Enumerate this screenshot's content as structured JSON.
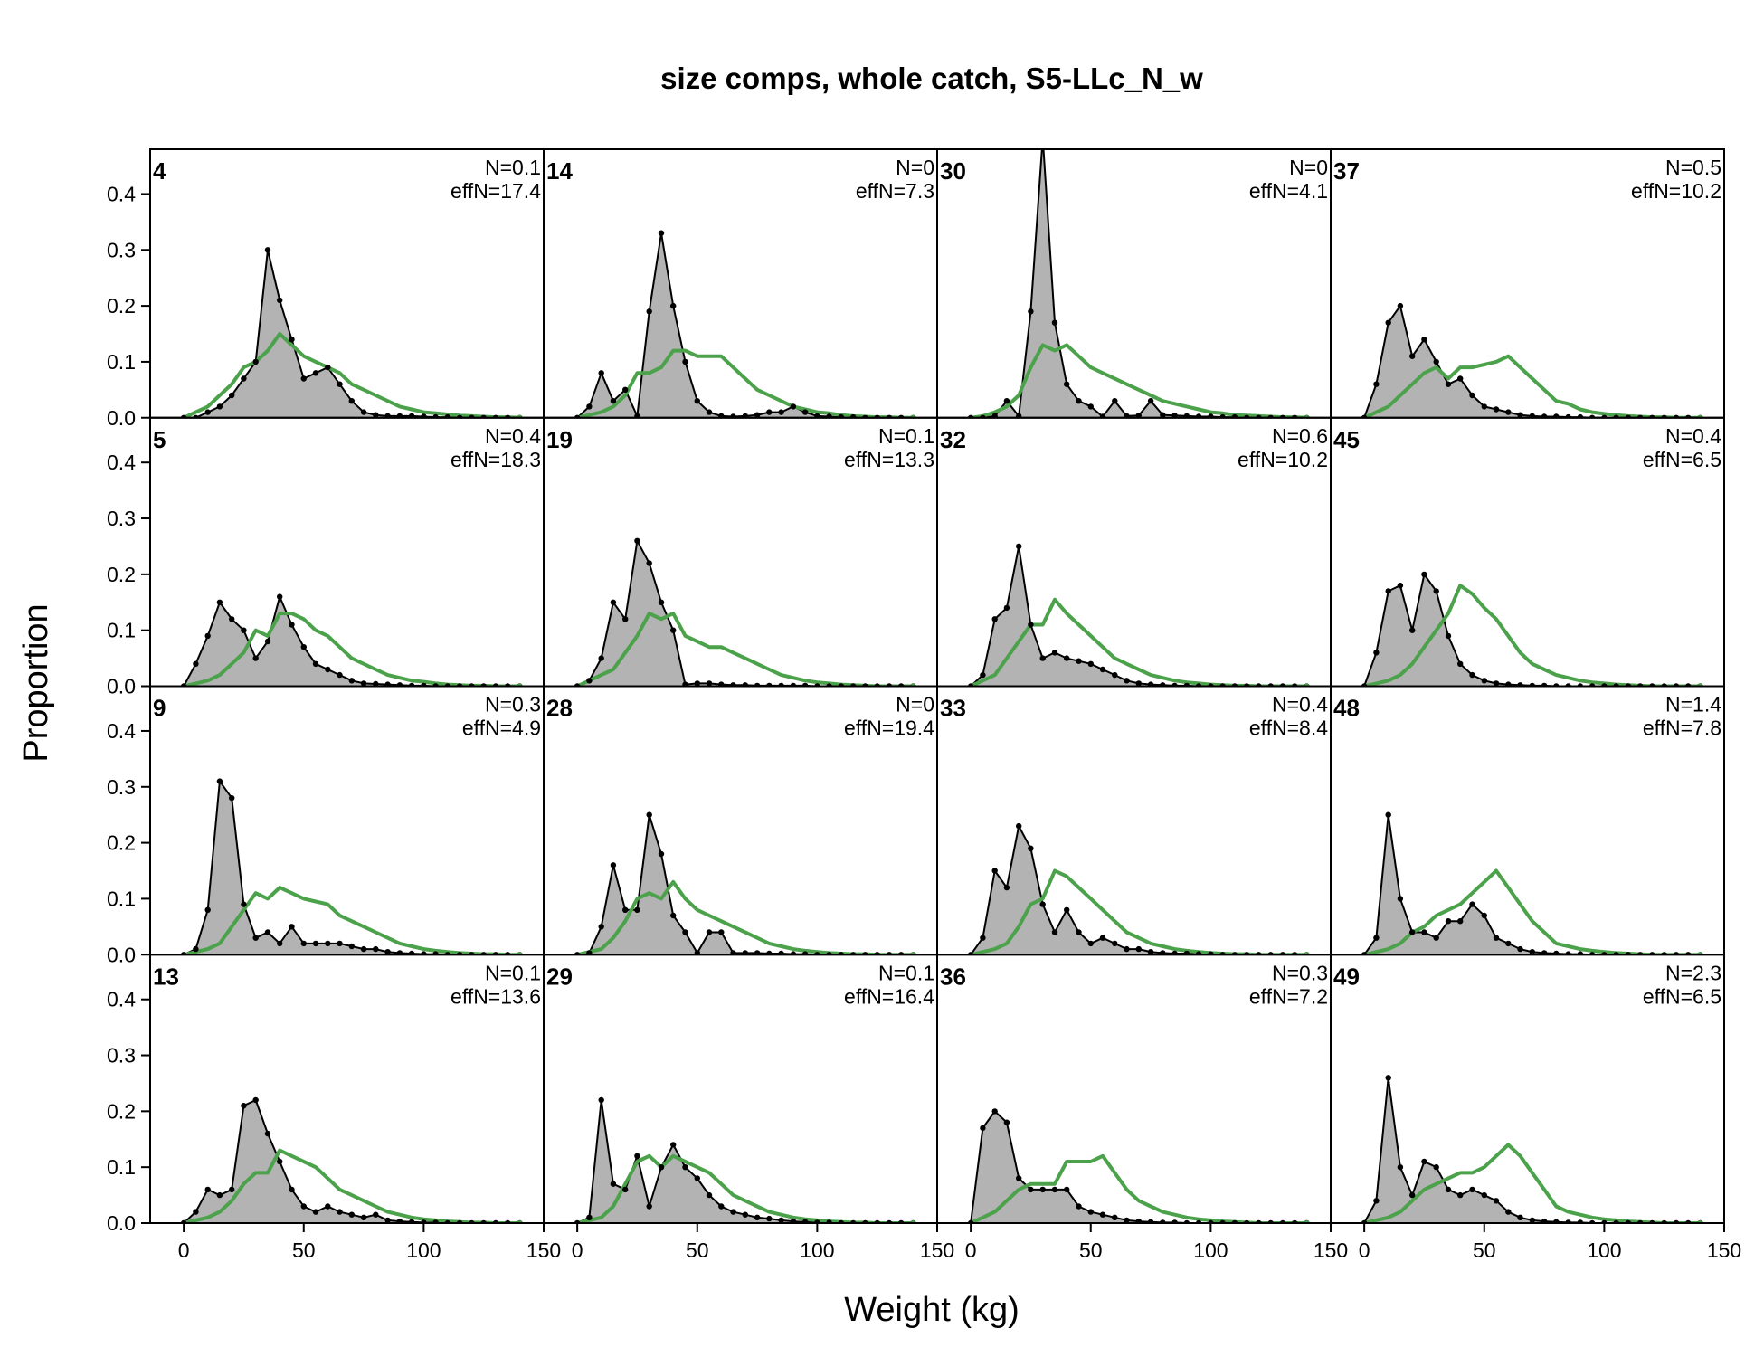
{
  "chart_data": {
    "type": "area",
    "title": "size comps, whole catch, S5-LLc_N_w",
    "xlabel": "Weight (kg)",
    "ylabel": "Proportion",
    "xlim": [
      -14,
      150
    ],
    "ylim": [
      0,
      0.48
    ],
    "xticks": [
      0,
      50,
      100,
      150
    ],
    "yticks": [
      0.0,
      0.1,
      0.2,
      0.3,
      0.4
    ],
    "x": [
      0,
      5,
      10,
      15,
      20,
      25,
      30,
      35,
      40,
      45,
      50,
      55,
      60,
      65,
      70,
      75,
      80,
      85,
      90,
      95,
      100,
      105,
      110,
      115,
      120,
      125,
      130,
      135,
      140
    ],
    "series_styles": {
      "observed": {
        "fill": "#b3b3b3",
        "line": "#000000"
      },
      "expected": {
        "line": "#4ba24b"
      }
    },
    "panels": [
      {
        "label": "4",
        "N": "N=0.1",
        "effN": "effN=17.4",
        "observed": [
          0,
          0,
          0.01,
          0.02,
          0.04,
          0.07,
          0.1,
          0.3,
          0.21,
          0.14,
          0.07,
          0.08,
          0.09,
          0.06,
          0.03,
          0.01,
          0.005,
          0.003,
          0.003,
          0.003,
          0.002,
          0.001,
          0.001,
          0,
          0,
          0,
          0,
          0,
          0
        ],
        "expected": [
          0,
          0.01,
          0.02,
          0.04,
          0.06,
          0.09,
          0.1,
          0.12,
          0.15,
          0.13,
          0.11,
          0.1,
          0.09,
          0.08,
          0.06,
          0.05,
          0.04,
          0.03,
          0.02,
          0.015,
          0.01,
          0.008,
          0.006,
          0.004,
          0.003,
          0.002,
          0.001,
          0.001,
          0
        ]
      },
      {
        "label": "14",
        "N": "N=0",
        "effN": "effN=7.3",
        "observed": [
          0,
          0.02,
          0.08,
          0.03,
          0.05,
          0.003,
          0.19,
          0.33,
          0.2,
          0.1,
          0.03,
          0.01,
          0.003,
          0.002,
          0.003,
          0.005,
          0.01,
          0.01,
          0.02,
          0.01,
          0.003,
          0.002,
          0.001,
          0.001,
          0,
          0,
          0,
          0,
          0
        ],
        "expected": [
          0,
          0.005,
          0.01,
          0.02,
          0.04,
          0.08,
          0.08,
          0.09,
          0.12,
          0.12,
          0.11,
          0.11,
          0.11,
          0.09,
          0.07,
          0.05,
          0.04,
          0.03,
          0.02,
          0.015,
          0.01,
          0.008,
          0.005,
          0.003,
          0.002,
          0.001,
          0.001,
          0,
          0
        ]
      },
      {
        "label": "30",
        "N": "N=0",
        "effN": "effN=4.1",
        "observed": [
          0,
          0,
          0.003,
          0.03,
          0.003,
          0.19,
          0.5,
          0.17,
          0.06,
          0.03,
          0.02,
          0.002,
          0.03,
          0.003,
          0.004,
          0.03,
          0.005,
          0.004,
          0.003,
          0.002,
          0.002,
          0.001,
          0.001,
          0,
          0,
          0,
          0,
          0,
          0
        ],
        "expected": [
          0,
          0.003,
          0.01,
          0.02,
          0.04,
          0.09,
          0.13,
          0.12,
          0.13,
          0.11,
          0.09,
          0.08,
          0.07,
          0.06,
          0.05,
          0.04,
          0.03,
          0.025,
          0.02,
          0.015,
          0.01,
          0.008,
          0.005,
          0.004,
          0.003,
          0.002,
          0.001,
          0.001,
          0
        ]
      },
      {
        "label": "37",
        "N": "N=0.5",
        "effN": "effN=10.2",
        "observed": [
          0,
          0.06,
          0.17,
          0.2,
          0.11,
          0.14,
          0.1,
          0.06,
          0.07,
          0.04,
          0.02,
          0.015,
          0.01,
          0.005,
          0.003,
          0.002,
          0.002,
          0.001,
          0.001,
          0,
          0,
          0,
          0,
          0,
          0,
          0,
          0,
          0,
          0
        ],
        "expected": [
          0,
          0.01,
          0.02,
          0.04,
          0.06,
          0.08,
          0.09,
          0.07,
          0.09,
          0.09,
          0.095,
          0.1,
          0.11,
          0.09,
          0.07,
          0.05,
          0.03,
          0.025,
          0.015,
          0.01,
          0.007,
          0.005,
          0.003,
          0.002,
          0.001,
          0.001,
          0,
          0,
          0
        ]
      },
      {
        "label": "5",
        "N": "N=0.4",
        "effN": "effN=18.3",
        "observed": [
          0,
          0.04,
          0.09,
          0.15,
          0.12,
          0.1,
          0.05,
          0.08,
          0.16,
          0.11,
          0.07,
          0.04,
          0.03,
          0.02,
          0.01,
          0.005,
          0.004,
          0.003,
          0.002,
          0.001,
          0.001,
          0,
          0,
          0,
          0,
          0,
          0,
          0,
          0
        ],
        "expected": [
          0,
          0.005,
          0.01,
          0.02,
          0.04,
          0.06,
          0.1,
          0.09,
          0.13,
          0.13,
          0.12,
          0.1,
          0.09,
          0.07,
          0.05,
          0.04,
          0.03,
          0.02,
          0.015,
          0.01,
          0.008,
          0.005,
          0.003,
          0.002,
          0.001,
          0.001,
          0,
          0,
          0
        ]
      },
      {
        "label": "19",
        "N": "N=0.1",
        "effN": "effN=13.3",
        "observed": [
          0,
          0.01,
          0.05,
          0.15,
          0.12,
          0.26,
          0.22,
          0.15,
          0.1,
          0.003,
          0.005,
          0.005,
          0.003,
          0.002,
          0.002,
          0.001,
          0.001,
          0.001,
          0.001,
          0.001,
          0,
          0,
          0,
          0,
          0,
          0,
          0,
          0,
          0
        ],
        "expected": [
          0,
          0.01,
          0.02,
          0.03,
          0.06,
          0.09,
          0.13,
          0.12,
          0.13,
          0.09,
          0.08,
          0.07,
          0.07,
          0.06,
          0.05,
          0.04,
          0.03,
          0.02,
          0.015,
          0.01,
          0.007,
          0.005,
          0.003,
          0.002,
          0.001,
          0,
          0,
          0,
          0
        ]
      },
      {
        "label": "32",
        "N": "N=0.6",
        "effN": "effN=10.2",
        "observed": [
          0,
          0.02,
          0.12,
          0.14,
          0.25,
          0.11,
          0.05,
          0.06,
          0.05,
          0.045,
          0.04,
          0.03,
          0.02,
          0.01,
          0.005,
          0.003,
          0.002,
          0.001,
          0.001,
          0,
          0,
          0,
          0,
          0,
          0,
          0,
          0,
          0,
          0
        ],
        "expected": [
          0,
          0.01,
          0.02,
          0.05,
          0.08,
          0.11,
          0.11,
          0.155,
          0.13,
          0.11,
          0.09,
          0.07,
          0.05,
          0.04,
          0.03,
          0.02,
          0.015,
          0.01,
          0.007,
          0.005,
          0.003,
          0.002,
          0.001,
          0.001,
          0,
          0,
          0,
          0,
          0
        ]
      },
      {
        "label": "45",
        "N": "N=0.4",
        "effN": "effN=6.5",
        "observed": [
          0,
          0.06,
          0.17,
          0.18,
          0.1,
          0.2,
          0.17,
          0.09,
          0.04,
          0.02,
          0.01,
          0.005,
          0.003,
          0.002,
          0.001,
          0.001,
          0,
          0,
          0,
          0,
          0,
          0,
          0,
          0,
          0,
          0,
          0,
          0,
          0
        ],
        "expected": [
          0,
          0.005,
          0.01,
          0.02,
          0.04,
          0.07,
          0.1,
          0.13,
          0.18,
          0.165,
          0.14,
          0.12,
          0.09,
          0.06,
          0.04,
          0.03,
          0.02,
          0.015,
          0.01,
          0.007,
          0.005,
          0.003,
          0.002,
          0.001,
          0,
          0,
          0,
          0,
          0
        ]
      },
      {
        "label": "9",
        "N": "N=0.3",
        "effN": "effN=4.9",
        "observed": [
          0,
          0.01,
          0.08,
          0.31,
          0.28,
          0.09,
          0.03,
          0.04,
          0.02,
          0.05,
          0.02,
          0.02,
          0.02,
          0.02,
          0.015,
          0.01,
          0.01,
          0.005,
          0.003,
          0.002,
          0.001,
          0.001,
          0,
          0,
          0,
          0,
          0,
          0,
          0
        ],
        "expected": [
          0,
          0.005,
          0.01,
          0.02,
          0.05,
          0.08,
          0.11,
          0.1,
          0.12,
          0.11,
          0.1,
          0.095,
          0.09,
          0.07,
          0.06,
          0.05,
          0.04,
          0.03,
          0.02,
          0.015,
          0.01,
          0.007,
          0.005,
          0.003,
          0.002,
          0.001,
          0.001,
          0,
          0
        ]
      },
      {
        "label": "28",
        "N": "N=0",
        "effN": "effN=19.4",
        "observed": [
          0,
          0.003,
          0.05,
          0.16,
          0.08,
          0.08,
          0.25,
          0.18,
          0.07,
          0.04,
          0.003,
          0.04,
          0.04,
          0.003,
          0.003,
          0.003,
          0.002,
          0.002,
          0.001,
          0.001,
          0,
          0,
          0,
          0,
          0,
          0,
          0,
          0,
          0
        ],
        "expected": [
          0,
          0.005,
          0.01,
          0.03,
          0.06,
          0.1,
          0.11,
          0.1,
          0.13,
          0.1,
          0.08,
          0.07,
          0.06,
          0.05,
          0.04,
          0.03,
          0.02,
          0.015,
          0.01,
          0.007,
          0.005,
          0.003,
          0.002,
          0.001,
          0.001,
          0,
          0,
          0,
          0
        ]
      },
      {
        "label": "33",
        "N": "N=0.4",
        "effN": "effN=8.4",
        "observed": [
          0,
          0.03,
          0.15,
          0.12,
          0.23,
          0.19,
          0.09,
          0.04,
          0.08,
          0.04,
          0.02,
          0.03,
          0.02,
          0.01,
          0.01,
          0.005,
          0.003,
          0.002,
          0.002,
          0.001,
          0.001,
          0,
          0,
          0,
          0,
          0,
          0,
          0,
          0
        ],
        "expected": [
          0,
          0.005,
          0.01,
          0.02,
          0.05,
          0.09,
          0.1,
          0.15,
          0.14,
          0.12,
          0.1,
          0.08,
          0.06,
          0.04,
          0.03,
          0.02,
          0.015,
          0.01,
          0.007,
          0.005,
          0.003,
          0.002,
          0.001,
          0.001,
          0,
          0,
          0,
          0,
          0
        ]
      },
      {
        "label": "48",
        "N": "N=1.4",
        "effN": "effN=7.8",
        "observed": [
          0,
          0.03,
          0.25,
          0.1,
          0.04,
          0.04,
          0.03,
          0.06,
          0.06,
          0.09,
          0.07,
          0.03,
          0.02,
          0.01,
          0.005,
          0.003,
          0.002,
          0.001,
          0.001,
          0,
          0,
          0,
          0,
          0,
          0,
          0,
          0,
          0,
          0
        ],
        "expected": [
          0,
          0.005,
          0.01,
          0.02,
          0.04,
          0.05,
          0.07,
          0.08,
          0.09,
          0.11,
          0.13,
          0.15,
          0.12,
          0.09,
          0.06,
          0.04,
          0.02,
          0.015,
          0.01,
          0.007,
          0.005,
          0.003,
          0.002,
          0.001,
          0,
          0,
          0,
          0,
          0
        ]
      },
      {
        "label": "13",
        "N": "N=0.1",
        "effN": "effN=13.6",
        "observed": [
          0,
          0.02,
          0.06,
          0.05,
          0.06,
          0.21,
          0.22,
          0.16,
          0.11,
          0.06,
          0.03,
          0.02,
          0.03,
          0.02,
          0.015,
          0.01,
          0.015,
          0.005,
          0.003,
          0.002,
          0.001,
          0.001,
          0,
          0,
          0,
          0,
          0,
          0,
          0
        ],
        "expected": [
          0,
          0.005,
          0.01,
          0.02,
          0.04,
          0.07,
          0.09,
          0.09,
          0.13,
          0.12,
          0.11,
          0.1,
          0.08,
          0.06,
          0.05,
          0.04,
          0.03,
          0.02,
          0.015,
          0.01,
          0.007,
          0.005,
          0.003,
          0.002,
          0.001,
          0.001,
          0,
          0,
          0
        ]
      },
      {
        "label": "29",
        "N": "N=0.1",
        "effN": "effN=16.4",
        "observed": [
          0,
          0.01,
          0.22,
          0.07,
          0.06,
          0.12,
          0.03,
          0.1,
          0.14,
          0.1,
          0.08,
          0.05,
          0.03,
          0.02,
          0.015,
          0.01,
          0.008,
          0.005,
          0.003,
          0.002,
          0.001,
          0.001,
          0,
          0,
          0,
          0,
          0,
          0,
          0
        ],
        "expected": [
          0,
          0.005,
          0.01,
          0.03,
          0.07,
          0.11,
          0.12,
          0.1,
          0.12,
          0.11,
          0.1,
          0.09,
          0.07,
          0.05,
          0.04,
          0.03,
          0.02,
          0.015,
          0.01,
          0.007,
          0.005,
          0.003,
          0.002,
          0.001,
          0.001,
          0,
          0,
          0,
          0
        ]
      },
      {
        "label": "36",
        "N": "N=0.3",
        "effN": "effN=7.2",
        "observed": [
          0,
          0.17,
          0.2,
          0.18,
          0.08,
          0.06,
          0.06,
          0.06,
          0.06,
          0.03,
          0.02,
          0.015,
          0.01,
          0.005,
          0.003,
          0.002,
          0.001,
          0.001,
          0,
          0,
          0,
          0,
          0,
          0,
          0,
          0,
          0,
          0,
          0
        ],
        "expected": [
          0,
          0.01,
          0.02,
          0.04,
          0.06,
          0.07,
          0.07,
          0.07,
          0.11,
          0.11,
          0.11,
          0.12,
          0.09,
          0.06,
          0.04,
          0.03,
          0.02,
          0.015,
          0.01,
          0.007,
          0.005,
          0.003,
          0.002,
          0.001,
          0,
          0,
          0,
          0,
          0
        ]
      },
      {
        "label": "49",
        "N": "N=2.3",
        "effN": "effN=6.5",
        "observed": [
          0,
          0.04,
          0.26,
          0.1,
          0.05,
          0.11,
          0.1,
          0.06,
          0.05,
          0.06,
          0.05,
          0.04,
          0.02,
          0.01,
          0.005,
          0.003,
          0.002,
          0.001,
          0.001,
          0,
          0,
          0,
          0,
          0,
          0,
          0,
          0,
          0,
          0
        ],
        "expected": [
          0,
          0.005,
          0.01,
          0.02,
          0.04,
          0.06,
          0.07,
          0.08,
          0.09,
          0.09,
          0.1,
          0.12,
          0.14,
          0.12,
          0.09,
          0.06,
          0.03,
          0.02,
          0.015,
          0.01,
          0.007,
          0.005,
          0.003,
          0.002,
          0.001,
          0,
          0,
          0,
          0
        ]
      }
    ]
  }
}
